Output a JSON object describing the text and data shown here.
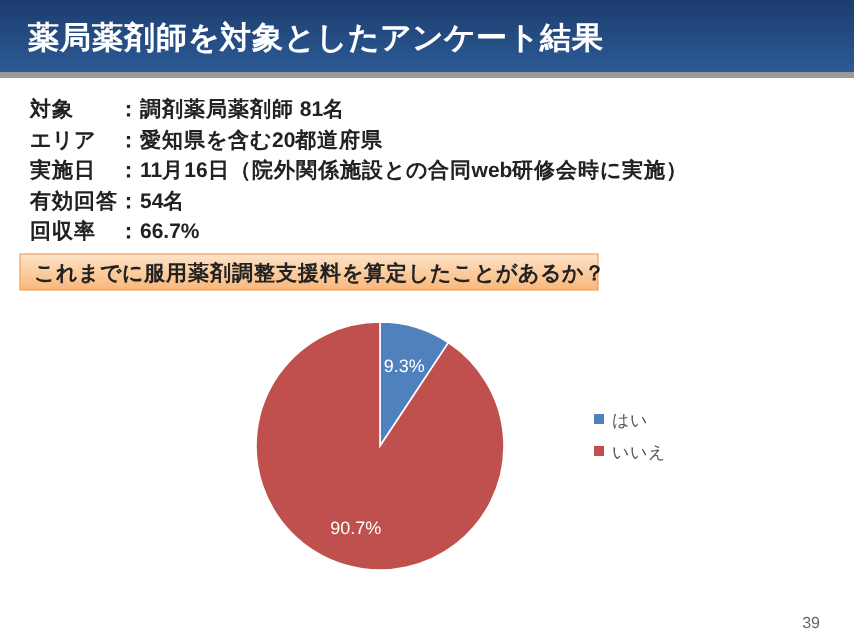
{
  "chart_data": {
    "type": "pie",
    "title": "薬局薬剤師を対象としたアンケート結果",
    "subtitle": "これまでに服用薬剤調整支援料を算定したことがあるか？",
    "annotations": [
      "対象　　：調剤薬局薬剤師 81名",
      "エリア　：愛知県を含む20都道府県",
      "実施日　：11月16日（院外関係施設との合同web研修会時に実施）",
      "有効回答：54名",
      "回収率　：66.7%",
      "39"
    ],
    "categories": [
      "はい",
      "いいえ"
    ],
    "values": [
      9.3,
      90.7
    ],
    "colors": [
      "#4f81bd",
      "#c0504d"
    ],
    "value_labels": [
      "9.3%",
      "90.7%"
    ],
    "legend": "right"
  }
}
